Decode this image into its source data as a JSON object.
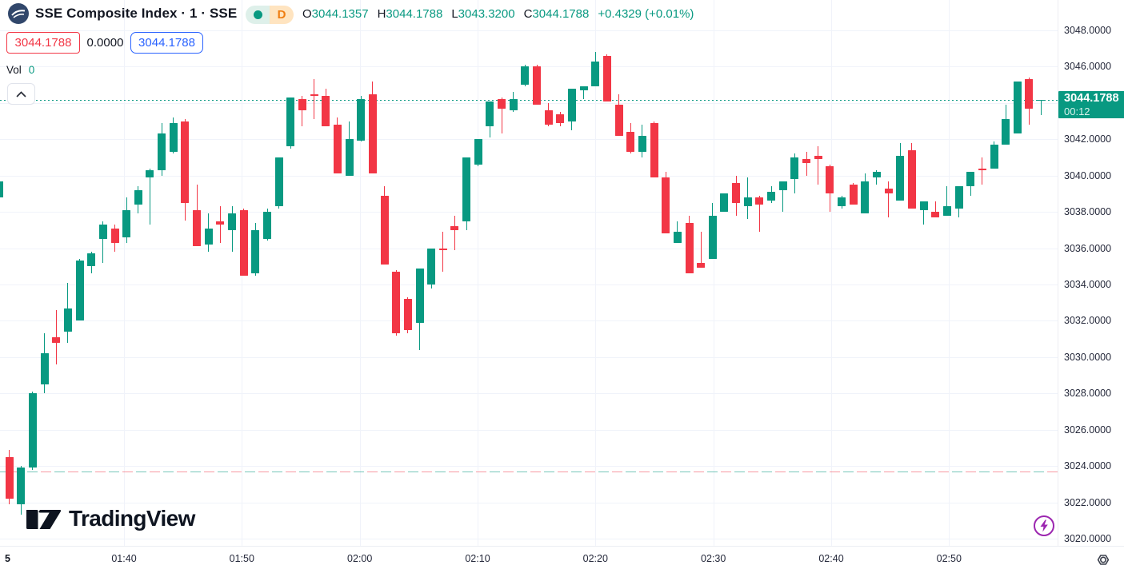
{
  "header": {
    "title": "SSE Composite Index · 1 · SSE",
    "timeframe_badge": "D",
    "ohlc": {
      "open_label": "O",
      "open": "3044.1357",
      "high_label": "H",
      "high": "3044.1788",
      "low_label": "L",
      "low": "3043.3200",
      "close_label": "C",
      "close": "3044.1788",
      "change": "+0.4329 (+0.01%)"
    },
    "sell_price": "3044.1788",
    "spread": "0.0000",
    "buy_price": "3044.1788",
    "volume_label": "Vol",
    "volume_value": "0"
  },
  "watermark": {
    "brand": "TradingView"
  },
  "colors": {
    "up": "#089981",
    "down": "#f23645",
    "sell_accent": "#f23645",
    "buy_accent": "#2962ff",
    "badge_bg": "#089981",
    "delayed_badge": "#ef7d11",
    "boost_purple": "#9c27b0"
  },
  "price_scale": {
    "labels": [
      "3048.0000",
      "3046.0000",
      "3044.0000",
      "3042.0000",
      "3040.0000",
      "3038.0000",
      "3036.0000",
      "3034.0000",
      "3032.0000",
      "3030.0000",
      "3028.0000",
      "3026.0000",
      "3024.0000",
      "3022.0000",
      "3020.0000"
    ],
    "badge_price": "3044.1788",
    "badge_countdown": "00:12"
  },
  "time_scale": {
    "session_label": "5",
    "labels": [
      "01:40",
      "01:50",
      "02:00",
      "02:10",
      "02:20",
      "02:30",
      "02:40",
      "02:50"
    ]
  },
  "chart_data": {
    "type": "candlestick",
    "title": "SSE Composite Index",
    "interval": "1",
    "exchange": "SSE",
    "ylim": [
      3020,
      3048
    ],
    "y_tick": 2,
    "grid": true,
    "current_price": 3044.1788,
    "prev_close_level": 3023.7,
    "candles": [
      [
        3024.5,
        3024.9,
        3021.9,
        3022.2
      ],
      [
        3021.9,
        3024.0,
        3021.3,
        3023.9
      ],
      [
        3023.9,
        3028.1,
        3023.8,
        3028.0
      ],
      [
        3028.5,
        3031.3,
        3028.0,
        3030.2
      ],
      [
        3031.1,
        3032.6,
        3029.6,
        3030.8
      ],
      [
        3031.4,
        3034.1,
        3030.8,
        3032.7
      ],
      [
        3032.0,
        3035.4,
        3032.0,
        3035.3
      ],
      [
        3035.0,
        3035.8,
        3034.6,
        3035.7
      ],
      [
        3036.5,
        3037.5,
        3035.2,
        3037.3
      ],
      [
        3037.1,
        3037.3,
        3035.8,
        3036.3
      ],
      [
        3036.6,
        3038.8,
        3036.3,
        3038.1
      ],
      [
        3038.4,
        3039.4,
        3037.9,
        3039.2
      ],
      [
        3039.9,
        3040.4,
        3037.3,
        3040.3
      ],
      [
        3040.3,
        3042.9,
        3040.0,
        3042.3
      ],
      [
        3041.3,
        3043.2,
        3041.2,
        3042.9
      ],
      [
        3043.0,
        3043.1,
        3037.5,
        3038.5
      ],
      [
        3038.1,
        3039.5,
        3036.1,
        3036.1
      ],
      [
        3036.2,
        3037.9,
        3035.8,
        3037.1
      ],
      [
        3037.5,
        3038.3,
        3036.3,
        3037.3
      ],
      [
        3037.0,
        3038.3,
        3035.8,
        3037.9
      ],
      [
        3038.1,
        3038.2,
        3034.5,
        3034.5
      ],
      [
        3034.6,
        3037.4,
        3034.5,
        3037.0
      ],
      [
        3036.5,
        3038.2,
        3036.4,
        3038.0
      ],
      [
        3038.3,
        3041.0,
        3038.2,
        3041.0
      ],
      [
        3041.6,
        3044.3,
        3041.5,
        3044.3
      ],
      [
        3044.2,
        3044.4,
        3042.7,
        3043.6
      ],
      [
        3044.5,
        3045.3,
        3043.1,
        3044.4
      ],
      [
        3044.4,
        3044.8,
        3042.7,
        3042.7
      ],
      [
        3042.8,
        3043.2,
        3040.1,
        3040.1
      ],
      [
        3040.0,
        3043.0,
        3040.0,
        3042.0
      ],
      [
        3041.9,
        3044.4,
        3041.9,
        3044.2
      ],
      [
        3044.5,
        3045.2,
        3040.1,
        3040.1
      ],
      [
        3038.9,
        3039.4,
        3035.1,
        3035.1
      ],
      [
        3034.7,
        3034.8,
        3031.2,
        3031.3
      ],
      [
        3033.2,
        3033.3,
        3031.3,
        3031.5
      ],
      [
        3031.9,
        3034.9,
        3030.4,
        3034.9
      ],
      [
        3034.0,
        3036.0,
        3033.8,
        3036.0
      ],
      [
        3036.0,
        3036.9,
        3034.7,
        3035.9
      ],
      [
        3037.2,
        3037.8,
        3035.9,
        3037.0
      ],
      [
        3037.5,
        3041.0,
        3037.0,
        3041.0
      ],
      [
        3040.6,
        3042.0,
        3040.5,
        3042.0
      ],
      [
        3042.7,
        3044.1,
        3042.1,
        3044.1
      ],
      [
        3044.2,
        3044.3,
        3042.3,
        3043.7
      ],
      [
        3043.6,
        3044.6,
        3043.5,
        3044.2
      ],
      [
        3045.0,
        3046.1,
        3044.9,
        3046.0
      ],
      [
        3046.0,
        3046.1,
        3043.9,
        3043.9
      ],
      [
        3043.6,
        3044.0,
        3042.7,
        3042.8
      ],
      [
        3043.4,
        3043.5,
        3042.7,
        3042.9
      ],
      [
        3043.0,
        3044.8,
        3042.5,
        3044.8
      ],
      [
        3044.7,
        3044.9,
        3044.2,
        3044.9
      ],
      [
        3044.9,
        3046.8,
        3044.9,
        3046.3
      ],
      [
        3046.6,
        3046.7,
        3044.1,
        3044.1
      ],
      [
        3043.9,
        3044.5,
        3042.2,
        3042.2
      ],
      [
        3042.4,
        3042.9,
        3041.2,
        3041.3
      ],
      [
        3041.3,
        3042.8,
        3041.0,
        3042.2
      ],
      [
        3042.9,
        3043.0,
        3039.9,
        3039.9
      ],
      [
        3039.9,
        3040.2,
        3036.8,
        3036.8
      ],
      [
        3036.3,
        3037.5,
        3036.3,
        3036.9
      ],
      [
        3037.4,
        3037.8,
        3034.6,
        3034.6
      ],
      [
        3035.2,
        3036.9,
        3034.9,
        3034.9
      ],
      [
        3035.4,
        3038.5,
        3035.4,
        3037.8
      ],
      [
        3038.0,
        3039.0,
        3038.0,
        3039.0
      ],
      [
        3039.6,
        3040.0,
        3037.8,
        3038.5
      ],
      [
        3038.3,
        3039.9,
        3037.6,
        3038.8
      ],
      [
        3038.8,
        3038.9,
        3036.9,
        3038.4
      ],
      [
        3038.6,
        3039.4,
        3038.5,
        3039.1
      ],
      [
        3039.2,
        3039.7,
        3038.0,
        3039.7
      ],
      [
        3039.8,
        3041.2,
        3039.0,
        3041.0
      ],
      [
        3040.9,
        3041.3,
        3040.0,
        3040.7
      ],
      [
        3041.1,
        3041.6,
        3039.5,
        3040.9
      ],
      [
        3040.5,
        3040.6,
        3038.0,
        3039.0
      ],
      [
        3038.3,
        3038.9,
        3038.2,
        3038.8
      ],
      [
        3039.5,
        3039.6,
        3038.4,
        3038.4
      ],
      [
        3037.9,
        3040.1,
        3037.9,
        3039.7
      ],
      [
        3039.9,
        3040.3,
        3039.5,
        3040.2
      ],
      [
        3039.3,
        3039.7,
        3037.7,
        3039.0
      ],
      [
        3038.6,
        3041.8,
        3038.6,
        3041.1
      ],
      [
        3041.4,
        3041.8,
        3038.2,
        3038.2
      ],
      [
        3038.1,
        3038.6,
        3037.3,
        3038.6
      ],
      [
        3038.0,
        3038.6,
        3037.7,
        3037.7
      ],
      [
        3037.8,
        3039.4,
        3037.8,
        3038.3
      ],
      [
        3038.2,
        3039.4,
        3037.7,
        3039.4
      ],
      [
        3039.4,
        3040.2,
        3038.9,
        3040.2
      ],
      [
        3040.4,
        3041.0,
        3039.5,
        3040.3
      ],
      [
        3040.4,
        3041.9,
        3040.4,
        3041.7
      ],
      [
        3041.7,
        3043.9,
        3041.7,
        3043.1
      ],
      [
        3042.3,
        3045.2,
        3042.3,
        3045.2
      ],
      [
        3045.3,
        3045.4,
        3042.8,
        3043.7
      ],
      [
        3044.1357,
        3044.1788,
        3043.32,
        3044.1788
      ]
    ]
  }
}
